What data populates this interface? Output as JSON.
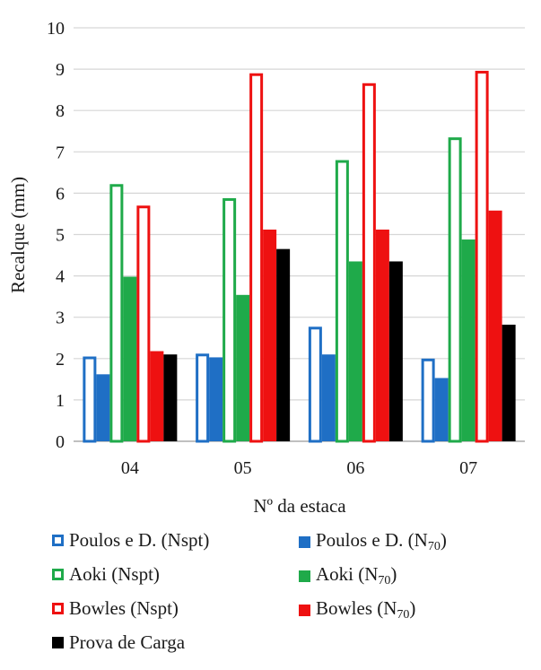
{
  "chart_data": {
    "type": "bar",
    "categories": [
      "04",
      "05",
      "06",
      "07"
    ],
    "xlabel": "Nº da estaca",
    "ylabel": "Recalque (mm)",
    "ylim": [
      0,
      10
    ],
    "yticks": [
      "0",
      "1",
      "2",
      "3",
      "4",
      "5",
      "6",
      "7",
      "8",
      "9",
      "10"
    ],
    "grid": true,
    "legend_position": "bottom",
    "series": [
      {
        "name": "Poulos e D. (Nspt)",
        "label_main": "Poulos e D. (Nspt)",
        "label_sub": "",
        "label_tail": "",
        "color": "#1f6fc5",
        "style": "outline",
        "values": [
          2.05,
          2.12,
          2.77,
          2.0
        ]
      },
      {
        "name": "Poulos e D. (N70)",
        "label_main": "Poulos e D. (N",
        "label_sub": "70",
        "label_tail": ")",
        "color": "#1f6fc5",
        "style": "filled",
        "values": [
          1.62,
          2.03,
          2.1,
          1.53
        ]
      },
      {
        "name": "Aoki (Nspt)",
        "label_main": "Aoki (Nspt)",
        "label_sub": "",
        "label_tail": "",
        "color": "#1faa4a",
        "style": "outline",
        "values": [
          6.22,
          5.88,
          6.8,
          7.35
        ]
      },
      {
        "name": "Aoki (N70)",
        "label_main": "Aoki (N",
        "label_sub": "70",
        "label_tail": ")",
        "color": "#1faa4a",
        "style": "filled",
        "values": [
          3.98,
          3.54,
          4.35,
          4.88
        ]
      },
      {
        "name": "Bowles (Nspt)",
        "label_main": "Bowles (Nspt)",
        "label_sub": "",
        "label_tail": "",
        "color": "#ee1111",
        "style": "outline",
        "values": [
          5.7,
          8.9,
          8.66,
          8.96
        ]
      },
      {
        "name": "Bowles (N70)",
        "label_main": "Bowles (N",
        "label_sub": "70",
        "label_tail": ")",
        "color": "#ee1111",
        "style": "filled",
        "values": [
          2.18,
          5.12,
          5.12,
          5.58
        ]
      },
      {
        "name": "Prova de Carga",
        "label_main": "Prova de Carga",
        "label_sub": "",
        "label_tail": "",
        "color": "#000000",
        "style": "filled",
        "values": [
          2.1,
          4.65,
          4.35,
          2.82
        ]
      }
    ]
  }
}
